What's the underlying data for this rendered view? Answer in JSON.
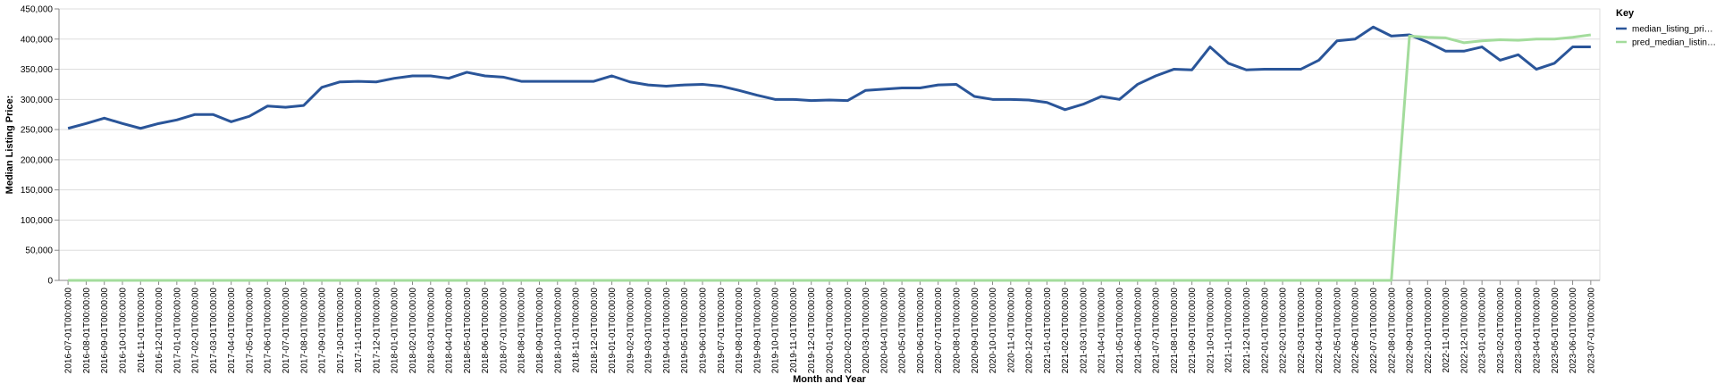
{
  "chart_data": {
    "type": "line",
    "x_label": "Month and Year",
    "y_label": "Median Listing Price:",
    "legend_title": "Key",
    "categories": [
      "2016-07-01T00:00:00",
      "2016-08-01T00:00:00",
      "2016-09-01T00:00:00",
      "2016-10-01T00:00:00",
      "2016-11-01T00:00:00",
      "2016-12-01T00:00:00",
      "2017-01-01T00:00:00",
      "2017-02-01T00:00:00",
      "2017-03-01T00:00:00",
      "2017-04-01T00:00:00",
      "2017-05-01T00:00:00",
      "2017-06-01T00:00:00",
      "2017-07-01T00:00:00",
      "2017-08-01T00:00:00",
      "2017-09-01T00:00:00",
      "2017-10-01T00:00:00",
      "2017-11-01T00:00:00",
      "2017-12-01T00:00:00",
      "2018-01-01T00:00:00",
      "2018-02-01T00:00:00",
      "2018-03-01T00:00:00",
      "2018-04-01T00:00:00",
      "2018-05-01T00:00:00",
      "2018-06-01T00:00:00",
      "2018-07-01T00:00:00",
      "2018-08-01T00:00:00",
      "2018-09-01T00:00:00",
      "2018-10-01T00:00:00",
      "2018-11-01T00:00:00",
      "2018-12-01T00:00:00",
      "2019-01-01T00:00:00",
      "2019-02-01T00:00:00",
      "2019-03-01T00:00:00",
      "2019-04-01T00:00:00",
      "2019-05-01T00:00:00",
      "2019-06-01T00:00:00",
      "2019-07-01T00:00:00",
      "2019-08-01T00:00:00",
      "2019-09-01T00:00:00",
      "2019-10-01T00:00:00",
      "2019-11-01T00:00:00",
      "2019-12-01T00:00:00",
      "2020-01-01T00:00:00",
      "2020-02-01T00:00:00",
      "2020-03-01T00:00:00",
      "2020-04-01T00:00:00",
      "2020-05-01T00:00:00",
      "2020-06-01T00:00:00",
      "2020-07-01T00:00:00",
      "2020-08-01T00:00:00",
      "2020-09-01T00:00:00",
      "2020-10-01T00:00:00",
      "2020-11-01T00:00:00",
      "2020-12-01T00:00:00",
      "2021-01-01T00:00:00",
      "2021-02-01T00:00:00",
      "2021-03-01T00:00:00",
      "2021-04-01T00:00:00",
      "2021-05-01T00:00:00",
      "2021-06-01T00:00:00",
      "2021-07-01T00:00:00",
      "2021-08-01T00:00:00",
      "2021-09-01T00:00:00",
      "2021-10-01T00:00:00",
      "2021-11-01T00:00:00",
      "2021-12-01T00:00:00",
      "2022-01-01T00:00:00",
      "2022-02-01T00:00:00",
      "2022-03-01T00:00:00",
      "2022-04-01T00:00:00",
      "2022-05-01T00:00:00",
      "2022-06-01T00:00:00",
      "2022-07-01T00:00:00",
      "2022-08-01T00:00:00",
      "2022-09-01T00:00:00",
      "2022-10-01T00:00:00",
      "2022-11-01T00:00:00",
      "2022-12-01T00:00:00",
      "2023-01-01T00:00:00",
      "2023-02-01T00:00:00",
      "2023-03-01T00:00:00",
      "2023-04-01T00:00:00",
      "2023-05-01T00:00:00",
      "2023-06-01T00:00:00",
      "2023-07-01T00:00:00"
    ],
    "series": [
      {
        "name": "median_listing_pri…",
        "color": "#2a5599",
        "values": [
          252000,
          260000,
          269000,
          260000,
          252000,
          260000,
          266000,
          275000,
          275000,
          263000,
          272000,
          289000,
          287000,
          290000,
          320000,
          329000,
          330000,
          329000,
          335000,
          339000,
          339000,
          335000,
          345000,
          339000,
          337000,
          330000,
          330000,
          330000,
          330000,
          330000,
          339000,
          329000,
          324000,
          322000,
          324000,
          325000,
          322000,
          315000,
          307000,
          300000,
          300000,
          298000,
          299000,
          298000,
          315000,
          317000,
          319000,
          319000,
          324000,
          325000,
          305000,
          300000,
          300000,
          299000,
          295000,
          283000,
          292000,
          305000,
          300000,
          325000,
          339000,
          350000,
          349000,
          387000,
          360000,
          349000,
          350000,
          350000,
          350000,
          365000,
          397000,
          400000,
          420000,
          405000,
          407000,
          395000,
          380000,
          380000,
          387000,
          365000,
          374000,
          350000,
          360000,
          387000,
          387000
        ]
      },
      {
        "name": "pred_median_listin…",
        "color": "#a3dc9c",
        "values": [
          0,
          0,
          0,
          0,
          0,
          0,
          0,
          0,
          0,
          0,
          0,
          0,
          0,
          0,
          0,
          0,
          0,
          0,
          0,
          0,
          0,
          0,
          0,
          0,
          0,
          0,
          0,
          0,
          0,
          0,
          0,
          0,
          0,
          0,
          0,
          0,
          0,
          0,
          0,
          0,
          0,
          0,
          0,
          0,
          0,
          0,
          0,
          0,
          0,
          0,
          0,
          0,
          0,
          0,
          0,
          0,
          0,
          0,
          0,
          0,
          0,
          0,
          0,
          0,
          0,
          0,
          0,
          0,
          0,
          0,
          0,
          0,
          0,
          0,
          405000,
          403000,
          402000,
          394000,
          397000,
          399000,
          398000,
          400000,
          400000,
          403000,
          407000
        ]
      }
    ],
    "ylim": [
      0,
      450000
    ],
    "yticks": [
      0,
      {
        "value": 50000,
        "label": "50,000"
      },
      {
        "value": 100000,
        "label": "100,000"
      },
      {
        "value": 150000,
        "label": "150,000"
      },
      {
        "value": 200000,
        "label": "200,000"
      },
      {
        "value": 250000,
        "label": "250,000"
      },
      {
        "value": 300000,
        "label": "300,000"
      },
      {
        "value": 350000,
        "label": "350,000"
      },
      {
        "value": 400000,
        "label": "400,000"
      },
      {
        "value": 450000,
        "label": "450,000"
      }
    ],
    "grid": true
  }
}
